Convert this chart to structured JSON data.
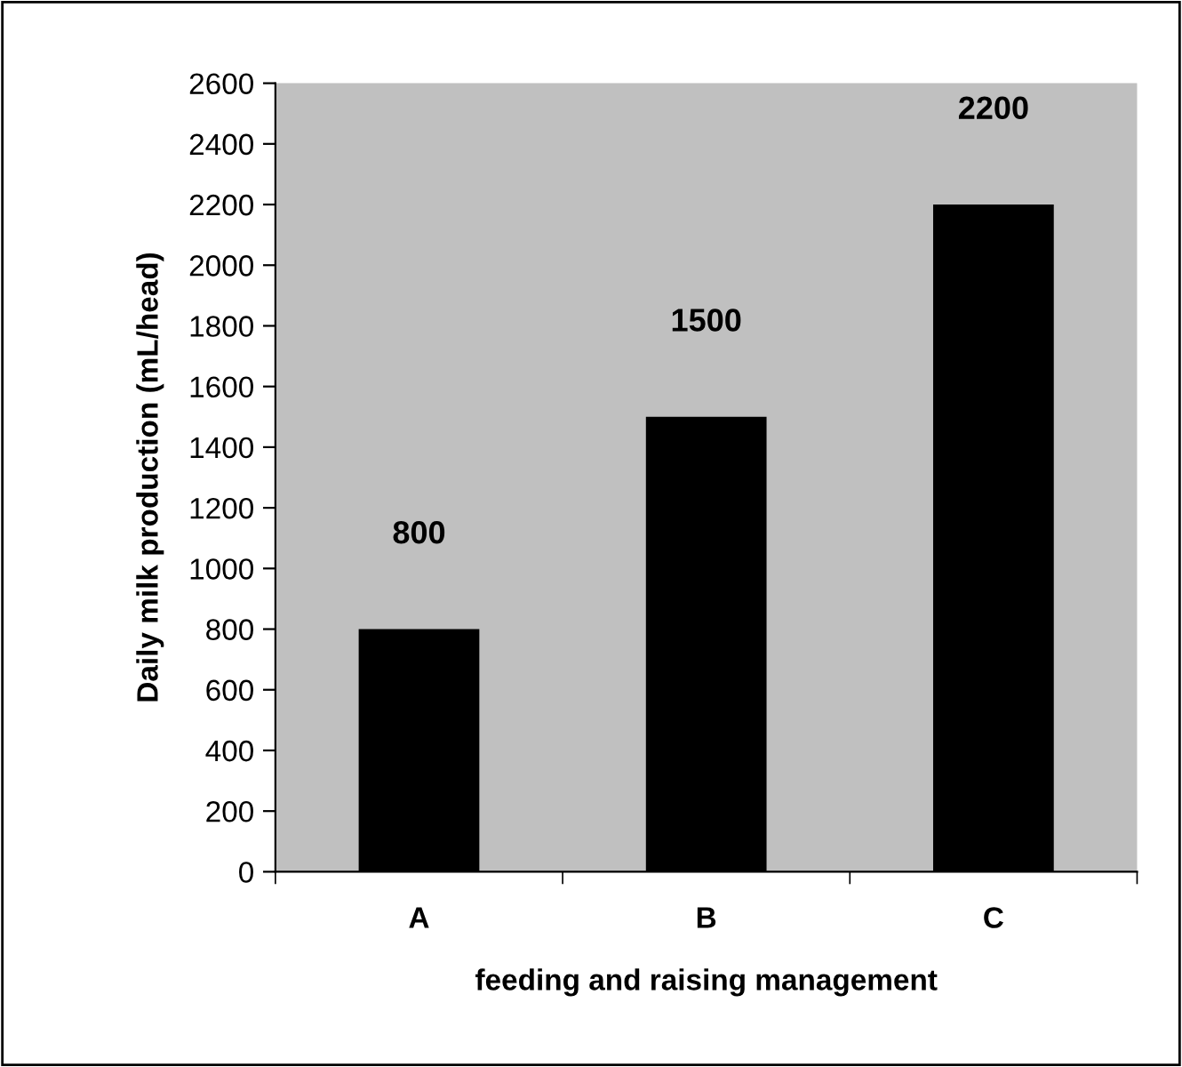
{
  "chart_data": {
    "type": "bar",
    "xlabel": "feeding and raising management",
    "ylabel": "Daily milk production (mL/head)",
    "categories": [
      "A",
      "B",
      "C"
    ],
    "values": [
      800,
      1500,
      2200
    ],
    "color": "#000000",
    "ylim": [
      0,
      2600
    ],
    "yticks": [
      0,
      200,
      400,
      600,
      800,
      1000,
      1200,
      1400,
      1600,
      1800,
      2000,
      2200,
      2400,
      2600
    ],
    "grid": false,
    "data_labels": true
  }
}
